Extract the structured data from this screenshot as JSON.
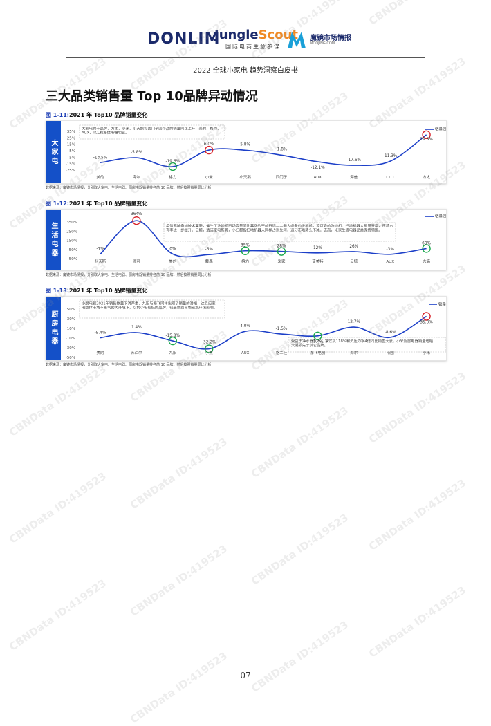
{
  "header": {
    "donlim": "DONLIM",
    "jungle_a": "Jungle",
    "jungle_b": "Scout",
    "jungle_sub": "国际电商生意参谋",
    "mj_name": "魔镜市场情报",
    "mj_url": "MOOJING.COM",
    "subtitle": "2022 全球小家电 趋势洞察白皮书"
  },
  "page_title": "三大品类销售量 Top 10品牌异动情况",
  "figures": [
    {
      "num": "图 1-11:",
      "title": "2021 年 Top10 品牌销量变化",
      "tab": "大家电",
      "legend": "销量同比",
      "annotation": "大家电的十品牌，方太、小米、小天鹅和西门子四个品牌销量同比上升，美的、格力、AUX、TCL和海信降幅明显。",
      "source": "数据来源：魔镜市场情报，分别取大家电、生活电器、厨房电器销量排名前 10 品牌，然后按照销量同比分析"
    },
    {
      "num": "图 1-12:",
      "title": "2021 年 Top10 品牌销量变化",
      "tab": "生活电器",
      "legend": "销量同比",
      "annotation": "疫情影响叠加技术革新，催生了洗地机市场容量同比暴涨的空前行情——懒人必备的洗地机，添可靠的洗地机、扫地机器人销量开增，市场占有率进一步提升。云鲸，清洁家电新势，小归都指扫地机器人同样占到先河，迈分市场势头不减。志高，米家生活电器品类保持领跑。",
      "source": "数据来源：魔镜市场情报，分别取大家电、生活电器、厨房电器销量排名前 10 品牌，然后按照销量同比分析"
    },
    {
      "num": "图 1-13:",
      "title": "2021 年 Top10 品牌销量变化",
      "tab": "厨房电器",
      "legend": "销量同比",
      "annotation": "小厨电器2021年销售数量下滑严重，九阳与海飞同样出现了销量的滑幅，这反应家电整体市场不景气的大环境下，以前小电较低的品牌，较最受到市场宏观环境影响。",
      "annotation2": "受益于净水器30%、净饮机118%和负压力钢4倍同比销售大涨，小米厨房电器销量增幅大幅领先于其它品牌。",
      "source": "数据来源：魔镜市场情报，分别取大家电、生活电器、厨房电器销量排名前 10 品牌，然后按照销量同比分析"
    }
  ],
  "chart_data": [
    {
      "type": "line",
      "categories": [
        "美的",
        "海尔",
        "格力",
        "小米",
        "小天鹅",
        "西门子",
        "AUX",
        "海信",
        "TCL",
        "方太"
      ],
      "series": [
        {
          "name": "销量同比",
          "values": [
            -13.5,
            -5.8,
            -19.6,
            6.0,
            5.8,
            -1.8,
            -12.1,
            -17.6,
            -11.3,
            29.8
          ]
        }
      ],
      "labels": [
        "-13.5%",
        "-5.8%",
        "-19.6%",
        "6.0%",
        "5.8%",
        "-1.8%",
        "-12.1%",
        "-17.6%",
        "-11.3%",
        "29.8%"
      ],
      "xlabels": [
        "美的",
        "海尔",
        "格力",
        "小米",
        "小天鹅",
        "西门子",
        "AUX",
        "海信",
        "T C L",
        "方太"
      ],
      "yticks": [
        "35%",
        "25%",
        "15%",
        "5%",
        "-5%",
        "-15%",
        "-25%"
      ],
      "ylim": [
        -25,
        35
      ],
      "highlight_red": [
        3,
        9
      ],
      "highlight_green": [
        2
      ],
      "color": "#1c3fc8"
    },
    {
      "type": "line",
      "categories": [
        "科沃斯",
        "添可",
        "美的",
        "戴森",
        "格力",
        "米家",
        "艾美特",
        "云鲸",
        "AUX",
        "志高"
      ],
      "series": [
        {
          "name": "销量同比",
          "values": [
            -1,
            364,
            0,
            -6,
            35,
            28,
            12,
            26,
            -3,
            60
          ]
        }
      ],
      "labels": [
        "-1%",
        "364%",
        "0%",
        "-6%",
        "35%",
        "28%",
        "12%",
        "26%",
        "-3%",
        "60%"
      ],
      "xlabels": [
        "科沃斯",
        "添可",
        "美的",
        "戴森",
        "格力",
        "米家",
        "艾美特",
        "云鲸",
        "AUX",
        "志高"
      ],
      "yticks": [
        "350%",
        "250%",
        "150%",
        "50%",
        "-50%"
      ],
      "ylim": [
        -50,
        350
      ],
      "highlight_red": [
        1
      ],
      "highlight_green": [
        4,
        5,
        9
      ],
      "color": "#1c3fc8"
    },
    {
      "type": "line",
      "categories": [
        "美的",
        "苏泊尔",
        "九阳",
        "小熊",
        "AUX",
        "格兰仕",
        "摩飞电器",
        "海尔",
        "沁园",
        "小米"
      ],
      "series": [
        {
          "name": "销量同比",
          "values": [
            -9.4,
            1.4,
            -15.8,
            -32.2,
            4.0,
            -1.5,
            -5.4,
            12.7,
            -8.6,
            35.0
          ]
        }
      ],
      "labels": [
        "-9.4%",
        "1.4%",
        "-15.8%",
        "-32.2%",
        "4.0%",
        "-1.5%",
        "-5.4%",
        "12.7%",
        "-8.6%",
        "35.0%"
      ],
      "xlabels": [
        "美的",
        "苏泊尔",
        "九阳",
        "小熊",
        "AUX",
        "格兰仕",
        "摩飞电器",
        "海尔",
        "沁园",
        "小米"
      ],
      "yticks": [
        "50%",
        "30%",
        "10%",
        "-10%",
        "-30%",
        "-50%"
      ],
      "ylim": [
        -50,
        50
      ],
      "highlight_red": [
        9
      ],
      "highlight_green": [
        2,
        3,
        6
      ],
      "color": "#1c3fc8"
    }
  ],
  "watermark": "CBNData ID:419523",
  "page_number": "07"
}
